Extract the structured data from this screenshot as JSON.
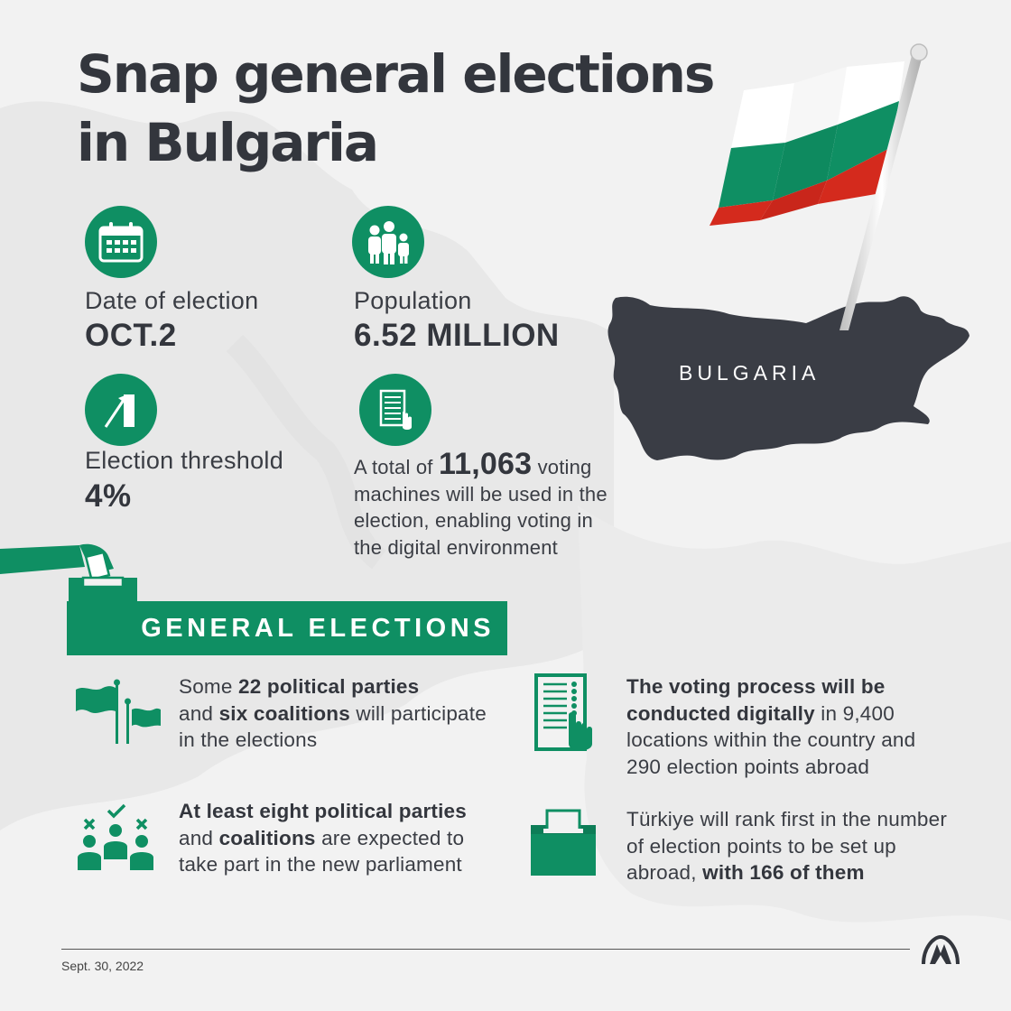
{
  "header": {
    "title_line1": "Snap general elections",
    "title_line2": "in Bulgaria"
  },
  "stats": {
    "date": {
      "label": "Date of election",
      "value": "OCT.2",
      "icon": "calendar-icon"
    },
    "population": {
      "label": "Population",
      "value": "6.52 MILLION",
      "icon": "family-icon"
    },
    "threshold": {
      "label": "Election threshold",
      "value": "4%",
      "icon": "threshold-chart-icon"
    },
    "machines": {
      "icon": "voting-machine-icon",
      "prefix": "A total of",
      "number": "11,063",
      "suffix": "voting",
      "line2": "machines will be used in the",
      "line3": "election, enabling voting in",
      "line4": "the digital environment"
    }
  },
  "map": {
    "label": "BULGARIA",
    "colors": {
      "country": "#3a3d45",
      "flag_white": "#ffffff",
      "flag_green": "#0f8f63",
      "flag_red": "#d42a1d"
    }
  },
  "section": {
    "title": "GENERAL ELECTIONS"
  },
  "facts": {
    "parties": {
      "icon": "flags-icon",
      "l1_a": "Some",
      "l1_b": "22 political parties",
      "l2_a": "and",
      "l2_b": "six coalitions",
      "l2_c": "will participate",
      "l3": "in the elections"
    },
    "digital": {
      "icon": "ballot-touch-icon",
      "l1": "The voting process will be",
      "l2_b": "conducted digitally",
      "l2_c": "in 9,400",
      "l3": "locations within the country and",
      "l4": "290 election points abroad"
    },
    "parliament": {
      "icon": "candidates-icon",
      "l1": "At least eight political parties",
      "l2_a": "and",
      "l2_b": "coalitions",
      "l2_c": "are expected to",
      "l3": "take part in the new parliament"
    },
    "turkiye": {
      "icon": "ballot-box-icon",
      "l1": "Türkiye will rank first in the number",
      "l2": "of election points to be set up",
      "l3_a": "abroad,",
      "l3_b": "with 166 of them"
    }
  },
  "footer": {
    "date": "Sept. 30, 2022",
    "logo": "aa-logo"
  },
  "colors": {
    "accent": "#0f8f63",
    "text": "#3a3d44",
    "background": "#f2f2f2"
  }
}
